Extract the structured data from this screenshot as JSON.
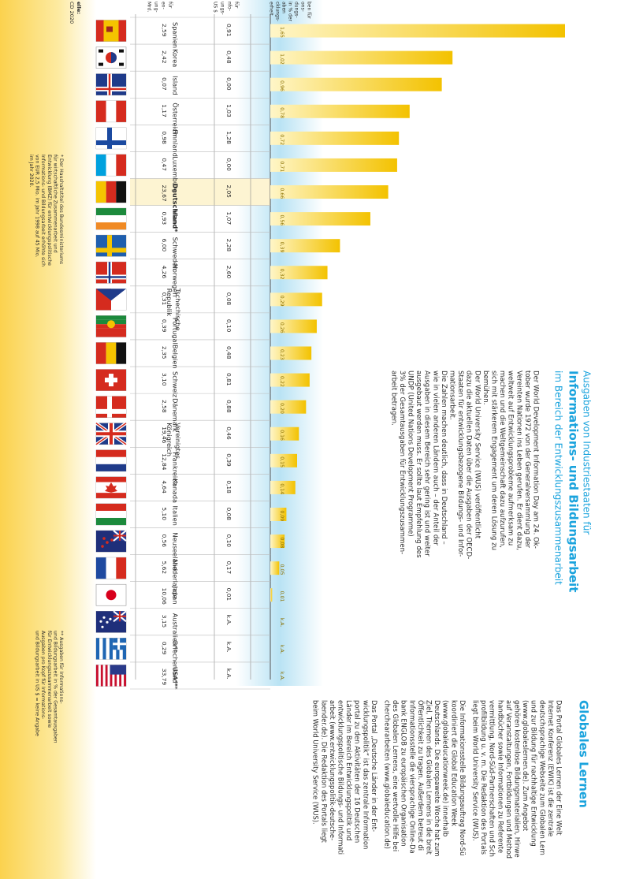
{
  "header": {
    "kicker": "Ausgaben von Industriestaaten für",
    "title": "Informations- und Bildungsarbeit",
    "subtitle": "im Bereich der Entwicklungszusammenarbeit",
    "col_left_frag": [
      "für",
      "en-",
      "ung-",
      "Mrd."
    ],
    "col_mid_frag": [
      "für",
      "nfo-",
      "ungs-",
      "US $"
    ],
    "col_right_frag": [
      "ben für",
      "ons-",
      "dungs-",
      "in % der",
      "aben",
      "cklungs-",
      "erheit"
    ],
    "source_frag": [
      "elle:",
      "CD 2020"
    ]
  },
  "intro": {
    "paragraphs": [
      [
        "Der World Development Information Day am 24. Ok-",
        "tober wurde 1972 von der Generalversammlung der",
        "Vereinten Nationen ins Leben gerufen. Er dient dazu,",
        "weltweit auf Entwicklungsprobleme aufmerksam zu",
        "machen und die Weltgemeinschaft dazu aufzurufen,",
        "sich mit stärkerem Engagement um deren Lösung zu",
        "bemühen."
      ],
      [
        "Der World University Service (WUS) veröffentlicht",
        "dazu die aktuellen Daten über die Ausgaben der OECD-",
        "Staaten für entwicklungsbezogene Bildungs- und Infor-",
        "mationsarbeit."
      ],
      [
        "Die Zahlen machen deutlich, dass in Deutschland –",
        "wie in vielen anderen Ländern auch – der Anteil der",
        "Ausgaben in diesem Bereich sehr gering ist und weiter",
        "ausgebaut werden muss. Er sollte laut Empfehlung des",
        "UNDP (United Nations Development Programme)",
        "3% der Gesamtausgaben für Entwicklungszusammen-",
        "arbeit betragen."
      ]
    ]
  },
  "globales": {
    "title": "Globales Lernen",
    "lines": [
      "Das Portal Globales Lernen der Eine Welt",
      "Internet Konferenz (EWIK) ist die zentrale",
      "deutschsprachige Webseite zum Globalen Lern",
      "und zur Bildung für nachhaltige Entwicklung",
      "(www.globaleslernen.de). Zum Angebot",
      "gehören kostenlose Bildungsmaterialien, Hinwe",
      "auf Veranstaltungen, Fortbildungen und Method",
      "handbücher sowie Informationen zu Referente",
      "vermittlung, Nord-Süd-Partnerschaften und Sch",
      "profilbildung u. v. m. Die Redaktion des Portals",
      "liegt beim World University Service (WUS).",
      "",
      "Die Informationsstelle Bildungsauftrag Nord-Sü",
      "koordiniert die Global Education Week",
      "(www.globaleducationweek.de) innerhalb",
      "Deutschlands. Die europaweite Woche hat zum",
      "Ziel, Themen des Globalen Lernens in die breit",
      "Öffentlichkeit zu tragen. Außerdem betreut di",
      "Informationsstelle die viersprachige Online-Da",
      "bank ENGLOB zu europäischen Organisation",
      "des Globalen Lernens, eine wertvolle Hilfe bei",
      "chercheararbeiten (www.globaleducation.de)",
      "",
      "Das Portal „Deutsche Länder in der Ent-",
      "wicklungspolitik“ ist das zentrale Information",
      "portal zu den Aktivitäten der 16 Deutschen",
      "Länder im Bereich Entwicklungspolitik und",
      "entwicklungspolitische Bildungs- und Informati",
      "arbeit (www.entwicklungspolitik-deutsche-",
      "laender.de). Die Redaktion des Portals liegt",
      "beim World University Service (WUS)."
    ]
  },
  "footnotes": {
    "single_star": [
      "* Der Haushaltstitel des Bundesministeriums",
      "für wirtschaftliche Zusammenarbeit und",
      "Entwicklung (BMZ) für entwicklungspolitische",
      "Informations- und Bildungsarbeit erhöhte sich",
      "von EUR 2,5 Mio. im Jahr 1998 auf 45 Mio.",
      "im Jahr 2020."
    ],
    "double_star": [
      "** Ausgaben für Informations-",
      "und Bildungsarbeit in % der Gesamtausgaben",
      "für Entwicklungszusammenarbeit sowie",
      "Ausgaben pro Kopf für Informations-",
      "und Bildungsarbeit in US $ = keine Angabe"
    ]
  },
  "colors": {
    "bar_light": "#fff6c8",
    "bar_dark": "#f3c200",
    "band_blue": "#b9e3f4",
    "band_yellow": "#fbd24e",
    "title_blue": "#1aa3dd",
    "highlight_row": "#fdf4d2",
    "grid": "#bbbbbb"
  },
  "chart_data": {
    "type": "bar",
    "orientation": "horizontal",
    "categories": [
      "Spanien",
      "Korea",
      "Island",
      "Österreich",
      "Finnland",
      "Luxemburg",
      "Deutschland*",
      "Irland",
      "Schweden",
      "Norwegen",
      "Tschechische Republik",
      "Portugal",
      "Belgien",
      "Schweiz",
      "Dänemark",
      "Vereinigtes Königreich",
      "Frankreich",
      "Kanada",
      "Italien",
      "Neuseeland",
      "Niederlande",
      "Japan",
      "Australien**",
      "Griechenland**",
      "USA**"
    ],
    "flags": [
      "flag-spain",
      "flag-korea",
      "flag-iceland",
      "flag-austria",
      "flag-finland",
      "flag-luxembourg",
      "flag-germany",
      "flag-ireland",
      "flag-sweden",
      "flag-norway",
      "flag-czech",
      "flag-portugal",
      "flag-belgium",
      "flag-switzerland",
      "flag-denmark",
      "flag-uk",
      "flag-france",
      "flag-canada",
      "flag-italy",
      "flag-new-zealand",
      "flag-netherlands",
      "flag-japan",
      "flag-australia",
      "flag-greece",
      "flag-usa"
    ],
    "series": [
      {
        "values": [
          "2,59",
          "2,42",
          "0,07",
          "1,17",
          "0,98",
          "0,47",
          "23,67",
          "0,93",
          "6,00",
          "4,26",
          "0,31",
          "0,39",
          "2,35",
          "3,10",
          "2,58",
          "19,46",
          "12,84",
          "4,64",
          "5,10",
          "0,56",
          "5,62",
          "10,06",
          "3,15",
          "0,29",
          "33,79"
        ]
      },
      {
        "values": [
          "0,91",
          "0,48",
          "0,00",
          "1,03",
          "1,28",
          "0,00",
          "2,05",
          "1,07",
          "2,28",
          "2,60",
          "0,08",
          "0,10",
          "0,48",
          "0,81",
          "0,88",
          "0,46",
          "0,39",
          "0,18",
          "0,08",
          "0,10",
          "0,17",
          "0,01",
          "k.A.",
          "k.A.",
          "k.A."
        ]
      },
      {
        "values": [
          1.65,
          1.02,
          0.96,
          0.78,
          0.72,
          0.71,
          0.66,
          0.56,
          0.39,
          0.32,
          0.29,
          0.26,
          0.23,
          0.22,
          0.2,
          0.16,
          0.15,
          0.14,
          0.09,
          0.08,
          0.05,
          0.01,
          null,
          null,
          null
        ],
        "labels": [
          "1,65",
          "1,02",
          "0,96",
          "0,78",
          "0,72",
          "0,71",
          "0,66",
          "0,56",
          "0,39",
          "0,32",
          "0,29",
          "0,26",
          "0,23",
          "0,22",
          "0,20",
          "0,16",
          "0,15",
          "0,14",
          "0,09",
          "0,08",
          "0,05",
          "0,01",
          "k.A.",
          "k.A.",
          "k.A."
        ]
      }
    ],
    "xlim": [
      0,
      1.65
    ],
    "highlight": "Deutschland*"
  }
}
